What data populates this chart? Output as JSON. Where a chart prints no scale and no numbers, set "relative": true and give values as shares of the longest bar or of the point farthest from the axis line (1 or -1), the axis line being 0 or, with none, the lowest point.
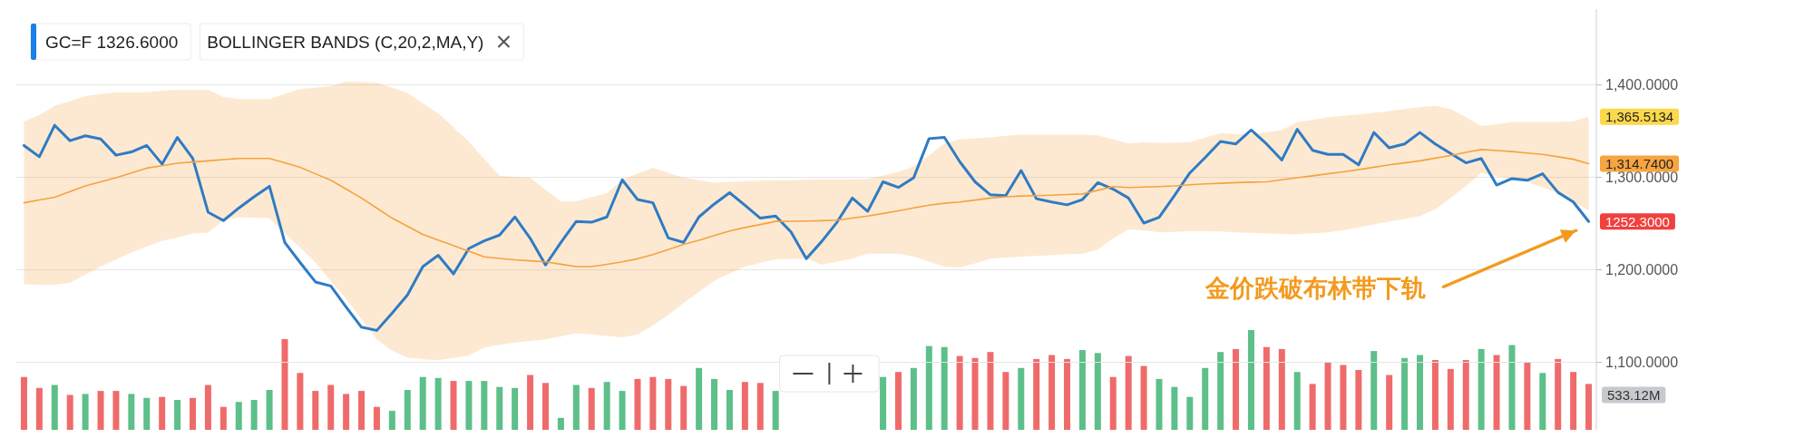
{
  "chart_data": [
    {
      "type": "line",
      "title": "GC=F 1326.6000",
      "subtitle": "BOLLINGER BANDS (C,20,2,MA,Y)",
      "categories": [
        null,
        null,
        null,
        null,
        null,
        null,
        null,
        null,
        null,
        null,
        null,
        null,
        null,
        null,
        null,
        null,
        null,
        null,
        null,
        null,
        null,
        null,
        null,
        null,
        null,
        null,
        null,
        null,
        null,
        null,
        null,
        null,
        null,
        null,
        null,
        null,
        null,
        null,
        null,
        null,
        null,
        null,
        null,
        null,
        null,
        null,
        null,
        null,
        null,
        null,
        null,
        null,
        null,
        null,
        null,
        null,
        null,
        null,
        null,
        null,
        null,
        null,
        null,
        null,
        null,
        null,
        null,
        null,
        null,
        null,
        null,
        null,
        null,
        null,
        null,
        null,
        null,
        null,
        null,
        null,
        null,
        null,
        null,
        null,
        null,
        null,
        null,
        null,
        null,
        null,
        null,
        null,
        null,
        null,
        null,
        null,
        null,
        null,
        null,
        null,
        null,
        null,
        null
      ],
      "ylim": [
        1027,
        1482
      ],
      "yticks": [
        {
          "value": 1100,
          "label": "1,100.0000"
        },
        {
          "value": 1200,
          "label": "1,200.0000"
        },
        {
          "value": 1300,
          "label": "1,300.0000"
        },
        {
          "value": 1400,
          "label": "1,400.0000"
        }
      ],
      "tick_labels": "y",
      "grid": "y",
      "series": [
        {
          "type": "line",
          "color": "#2f7bc4",
          "values": [
            1334.5,
            1322.3,
            1356.3,
            1339.7,
            1345.0,
            1341.5,
            1324.0,
            1327.5,
            1334.5,
            1314.4,
            1343.2,
            1320.5,
            1262.4,
            1253.3,
            1266.8,
            1279.0,
            1290.4,
            1229.7,
            1207.9,
            1186.9,
            1182.5,
            1159.8,
            1138.0,
            1134.5,
            1153.3,
            1172.9,
            1203.5,
            1215.7,
            1195.6,
            1223.1,
            1231.4,
            1237.6,
            1257.2,
            1234.1,
            1205.2,
            1229.7,
            1252.4,
            1251.5,
            1257.2,
            1297.4,
            1276.0,
            1272.5,
            1234.5,
            1229.7,
            1257.2,
            1271.2,
            1283.4,
            1269.9,
            1255.9,
            1258.1,
            1241.0,
            1212.2,
            1230.6,
            1251.5,
            1277.7,
            1263.3,
            1295.2,
            1289.1,
            1299.6,
            1341.9,
            1343.2,
            1317.0,
            1295.2,
            1281.2,
            1280.3,
            1307.4,
            1276.9,
            1273.4,
            1270.3,
            1276.0,
            1294.3,
            1287.3,
            1277.7,
            1250.6,
            1256.8,
            1280.3,
            1304.8,
            1321.4,
            1338.9,
            1336.2,
            1351.1,
            1336.2,
            1318.8,
            1352.0,
            1329.3,
            1324.9,
            1324.9,
            1313.5,
            1348.5,
            1331.9,
            1336.2,
            1348.5,
            1336.2,
            1325.8,
            1315.7,
            1320.5,
            1291.7,
            1298.7,
            1296.9,
            1303.9,
            1283.8,
            1273.4,
            1252.3
          ],
          "value_labels": [
            null,
            null,
            null,
            null,
            null,
            null,
            null,
            null,
            null,
            null,
            null,
            null,
            null,
            null,
            null,
            null,
            null,
            null,
            null,
            null,
            null,
            null,
            null,
            null,
            null,
            null,
            null,
            null,
            null,
            null,
            null,
            null,
            null,
            null,
            null,
            null,
            null,
            null,
            null,
            null,
            null,
            null,
            null,
            null,
            null,
            null,
            null,
            null,
            null,
            null,
            null,
            null,
            null,
            null,
            null,
            null,
            null,
            null,
            null,
            null,
            null,
            null,
            null,
            null,
            null,
            null,
            null,
            null,
            null,
            null,
            null,
            null,
            null,
            null,
            null,
            null,
            null,
            null,
            null,
            null,
            null,
            null,
            null,
            null,
            null,
            null,
            null,
            null,
            null,
            null,
            null,
            null,
            null,
            null,
            null,
            null,
            null,
            null,
            null,
            null,
            null,
            null,
            "1252.3000"
          ]
        },
        {
          "type": "line",
          "color": "#f5a33f",
          "values": [
            1272.5,
            1275.5,
            1278.6,
            1284.7,
            1290.8,
            1295.2,
            1299.6,
            1304.8,
            1310.0,
            1312.6,
            1315.3,
            1316.6,
            1317.9,
            1319.2,
            1320.5,
            1320.5,
            1320.5,
            1315.7,
            1310.9,
            1303.9,
            1296.9,
            1287.3,
            1277.7,
            1266.8,
            1255.9,
            1247.1,
            1238.4,
            1232.3,
            1226.2,
            1220.1,
            1214.0,
            1212.4,
            1210.9,
            1209.8,
            1208.7,
            1206.1,
            1203.5,
            1203.5,
            1206,
            1208.7,
            1212,
            1216.6,
            1222,
            1227.5,
            1232,
            1237.1,
            1242,
            1245.8,
            1249,
            1252.4,
            1252.6,
            1252.8,
            1253.2,
            1253.7,
            1256,
            1258.1,
            1261,
            1263.8,
            1267,
            1269.9,
            1272,
            1273.4,
            1275.5,
            1277.7,
            1279,
            1279.9,
            1280.3,
            1280.8,
            1281.5,
            1282.1,
            1286,
            1290.0,
            1289,
            1289.5,
            1290,
            1290.8,
            1292,
            1293.0,
            1293.6,
            1294.3,
            1294.8,
            1295.2,
            1297.4,
            1299.6,
            1301.7,
            1303.9,
            1306,
            1308.3,
            1311,
            1313.5,
            1315.7,
            1317.9,
            1320.8,
            1323.6,
            1327,
            1330.1,
            1329,
            1327.9,
            1326.4,
            1324.9,
            1322.3,
            1319.6,
            1314.74
          ],
          "upper": [
            1360.7,
            1367.2,
            1377.3,
            1382.5,
            1387.8,
            1390,
            1392.1,
            1392.1,
            1392.1,
            1393.5,
            1394.8,
            1394.8,
            1394.8,
            1386.9,
            1384.7,
            1384.7,
            1384.7,
            1390,
            1395.6,
            1397,
            1398.7,
            1403.5,
            1403,
            1402.2,
            1397,
            1391.3,
            1380,
            1369.4,
            1354,
            1338.9,
            1320,
            1301.7,
            1300.5,
            1299.6,
            1286.5,
            1274.2,
            1274.2,
            1278.6,
            1283.0,
            1297.4,
            1304,
            1310.5,
            1305,
            1299.6,
            1297,
            1294.3,
            1295,
            1296,
            1296.5,
            1297,
            1297,
            1297.4,
            1297.8,
            1298,
            1298,
            1298.2,
            1302,
            1306.1,
            1311.8,
            1324,
            1336.7,
            1341.0,
            1342,
            1343.2,
            1345,
            1346.3,
            1346.3,
            1346.3,
            1346.3,
            1346.3,
            1345.4,
            1341,
            1336.7,
            1338.0,
            1337.1,
            1337.5,
            1338.0,
            1343,
            1347.6,
            1347,
            1346.7,
            1349,
            1351.1,
            1359.8,
            1362,
            1365.1,
            1366.6,
            1368.1,
            1370,
            1371.6,
            1374,
            1376.0,
            1377.3,
            1373.8,
            1365,
            1355.5,
            1357.5,
            1359.8,
            1359.8,
            1359.8,
            1359.8,
            1360.7,
            1365.5134
          ],
          "lower": [
            1184.3,
            1184,
            1183.8,
            1186.0,
            1195,
            1203.5,
            1211,
            1218.8,
            1225,
            1231.4,
            1235,
            1239.3,
            1240.2,
            1253.7,
            1256.8,
            1256.5,
            1255.9,
            1239.3,
            1224,
            1207.9,
            1188,
            1168.6,
            1146.7,
            1124.9,
            1112.6,
            1105.2,
            1103.5,
            1102.2,
            1104.8,
            1107.4,
            1116.1,
            1119,
            1121.4,
            1123,
            1124.9,
            1128,
            1131.4,
            1130.1,
            1128.6,
            1127.1,
            1130.1,
            1140,
            1151.1,
            1164.2,
            1176,
            1188.2,
            1196,
            1203.5,
            1207.4,
            1211.3,
            1211.8,
            1212.2,
            1205.7,
            1209,
            1212.2,
            1217.5,
            1217.5,
            1217.5,
            1214.4,
            1209,
            1203.5,
            1202.6,
            1207,
            1212.2,
            1213.3,
            1214.4,
            1215,
            1216,
            1217,
            1217.5,
            1221.8,
            1234.1,
            1243.7,
            1242.8,
            1240.6,
            1241,
            1241.9,
            1241.7,
            1241.5,
            1240.6,
            1240,
            1239.3,
            1238.8,
            1238.4,
            1239.5,
            1240.6,
            1243,
            1245.8,
            1249,
            1252.4,
            1255,
            1258.1,
            1265.5,
            1277.7,
            1290.8,
            1304.8,
            1301.3,
            1298,
            1295.2,
            1289,
            1283.0,
            1273.4,
            1264.6
          ],
          "value_labels": [
            null,
            null,
            null,
            null,
            null,
            null,
            null,
            null,
            null,
            null,
            null,
            null,
            null,
            null,
            null,
            null,
            null,
            null,
            null,
            null,
            null,
            null,
            null,
            null,
            null,
            null,
            null,
            null,
            null,
            null,
            null,
            null,
            null,
            null,
            null,
            null,
            null,
            null,
            null,
            null,
            null,
            null,
            null,
            null,
            null,
            null,
            null,
            null,
            null,
            null,
            null,
            null,
            null,
            null,
            null,
            null,
            null,
            null,
            null,
            null,
            null,
            null,
            null,
            null,
            null,
            null,
            null,
            null,
            null,
            null,
            null,
            null,
            null,
            null,
            null,
            null,
            null,
            null,
            null,
            null,
            null,
            null,
            null,
            null,
            null,
            null,
            null,
            null,
            null,
            null,
            null,
            null,
            null,
            null,
            null,
            null,
            null,
            null,
            null,
            null,
            null,
            null,
            "1,314.7400"
          ]
        }
      ],
      "annotations": [
        "1,365.5134",
        "金价跌破布林带下轨"
      ]
    },
    {
      "type": "bar",
      "relative": true,
      "categories": [
        null,
        null,
        null,
        null,
        null,
        null,
        null,
        null,
        null,
        null,
        null,
        null,
        null,
        null,
        null,
        null,
        null,
        null,
        null,
        null,
        null,
        null,
        null,
        null,
        null,
        null,
        null,
        null,
        null,
        null,
        null,
        null,
        null,
        null,
        null,
        null,
        null,
        null,
        null,
        null,
        null,
        null,
        null,
        null,
        null,
        null,
        null,
        null,
        null,
        null,
        null,
        null,
        null,
        null,
        null,
        null,
        null,
        null,
        null,
        null,
        null,
        null,
        null,
        null,
        null,
        null,
        null,
        null,
        null,
        null,
        null,
        null,
        null,
        null,
        null,
        null,
        null,
        null,
        null,
        null,
        null,
        null,
        null,
        null,
        null,
        null,
        null,
        null,
        null,
        null,
        null,
        null,
        null,
        null,
        null,
        null,
        null,
        null,
        null,
        null,
        null,
        null,
        null
      ],
      "values": [
        0.53,
        0.42,
        0.45,
        0.35,
        0.36,
        0.39,
        0.39,
        0.36,
        0.32,
        0.33,
        0.3,
        0.32,
        0.45,
        0.23,
        0.28,
        0.3,
        0.4,
        0.91,
        0.57,
        0.39,
        0.45,
        0.36,
        0.39,
        0.23,
        0.19,
        0.4,
        0.53,
        0.52,
        0.49,
        0.49,
        0.49,
        0.43,
        0.42,
        0.55,
        0.47,
        0.12,
        0.45,
        0.42,
        0.48,
        0.39,
        0.51,
        0.53,
        0.51,
        0.44,
        0.62,
        0.51,
        0.4,
        0.48,
        0.47,
        0.39,
        null,
        null,
        null,
        null,
        null,
        null,
        0.53,
        0.58,
        0.62,
        0.84,
        0.83,
        0.74,
        0.72,
        0.78,
        0.58,
        0.62,
        0.71,
        0.75,
        0.71,
        0.8,
        0.77,
        0.53,
        0.74,
        0.64,
        0.51,
        0.43,
        0.33,
        0.62,
        0.78,
        0.81,
        1,
        0.83,
        0.81,
        0.58,
        0.46,
        0.68,
        0.65,
        0.6,
        0.79,
        0.55,
        0.72,
        0.75,
        0.7,
        0.61,
        0.7,
        0.81,
        0.75,
        0.85,
        0.68,
        0.57,
        0.71,
        0.58,
        0.46
      ],
      "colors": [
        "#ef6b6b",
        "#ef6b6b",
        "#5dbf8a",
        "#ef6b6b",
        "#5dbf8a",
        "#ef6b6b",
        "#ef6b6b",
        "#5dbf8a",
        "#5dbf8a",
        "#ef6b6b",
        "#5dbf8a",
        "#ef6b6b",
        "#ef6b6b",
        "#ef6b6b",
        "#5dbf8a",
        "#5dbf8a",
        "#5dbf8a",
        "#ef6b6b",
        "#ef6b6b",
        "#ef6b6b",
        "#ef6b6b",
        "#ef6b6b",
        "#ef6b6b",
        "#ef6b6b",
        "#5dbf8a",
        "#5dbf8a",
        "#5dbf8a",
        "#5dbf8a",
        "#ef6b6b",
        "#5dbf8a",
        "#5dbf8a",
        "#5dbf8a",
        "#5dbf8a",
        "#ef6b6b",
        "#ef6b6b",
        "#5dbf8a",
        "#5dbf8a",
        "#ef6b6b",
        "#5dbf8a",
        "#5dbf8a",
        "#ef6b6b",
        "#ef6b6b",
        "#ef6b6b",
        "#ef6b6b",
        "#5dbf8a",
        "#5dbf8a",
        "#5dbf8a",
        "#ef6b6b",
        "#ef6b6b",
        "#5dbf8a",
        null,
        null,
        null,
        null,
        null,
        null,
        "#5dbf8a",
        "#ef6b6b",
        "#5dbf8a",
        "#5dbf8a",
        "#5dbf8a",
        "#ef6b6b",
        "#ef6b6b",
        "#ef6b6b",
        "#ef6b6b",
        "#5dbf8a",
        "#ef6b6b",
        "#ef6b6b",
        "#ef6b6b",
        "#5dbf8a",
        "#5dbf8a",
        "#ef6b6b",
        "#ef6b6b",
        "#ef6b6b",
        "#5dbf8a",
        "#5dbf8a",
        "#5dbf8a",
        "#5dbf8a",
        "#5dbf8a",
        "#ef6b6b",
        "#5dbf8a",
        "#ef6b6b",
        "#ef6b6b",
        "#5dbf8a",
        "#ef6b6b",
        "#ef6b6b",
        "#ef6b6b",
        "#ef6b6b",
        "#5dbf8a",
        "#ef6b6b",
        "#5dbf8a",
        "#5dbf8a",
        "#ef6b6b",
        "#ef6b6b",
        "#ef6b6b",
        "#5dbf8a",
        "#ef6b6b",
        "#5dbf8a",
        "#ef6b6b",
        "#5dbf8a",
        "#ef6b6b",
        "#ef6b6b",
        "#ef6b6b"
      ],
      "annotations": [
        "533.12M"
      ]
    }
  ]
}
